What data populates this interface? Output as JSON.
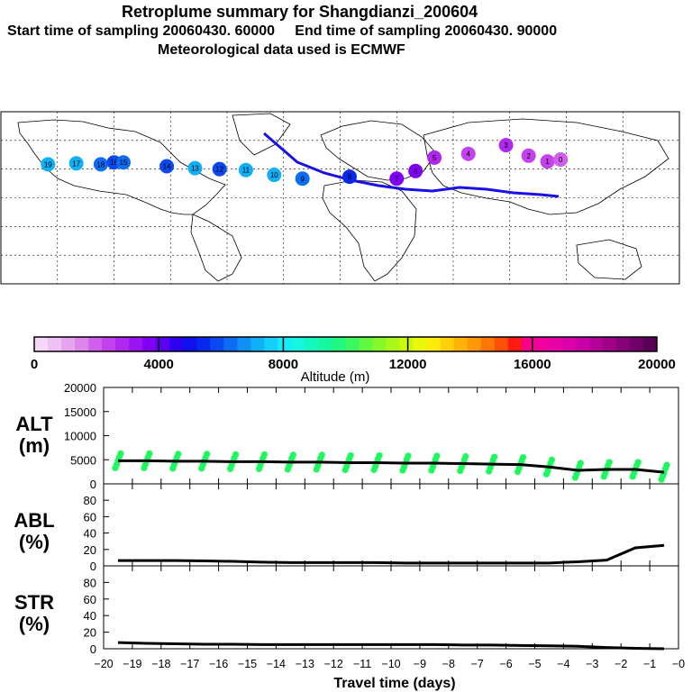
{
  "header": {
    "title": "Retroplume summary for Shangdianzi_200604",
    "start_label": "Start time of sampling 20060430. 60000",
    "end_label": "End time of sampling 20060430. 90000",
    "met_label": "Meteorological data used is ECMWF"
  },
  "colorbar": {
    "title": "Altitude (m)",
    "tick_labels": [
      "0",
      "4000",
      "8000",
      "12000",
      "16000",
      "20000"
    ],
    "colors": [
      "#f5d8f7",
      "#eec0f3",
      "#e6a4ef",
      "#dc86ec",
      "#d060eb",
      "#c442ee",
      "#b028f0",
      "#9a14f2",
      "#8000f5",
      "#5a00f5",
      "#2d00f2",
      "#1010ee",
      "#0828f0",
      "#0a48f2",
      "#0c6cf4",
      "#0e90f6",
      "#10b0f8",
      "#12d0f9",
      "#14ecf8",
      "#14f6e0",
      "#14f8c0",
      "#16f8a0",
      "#20f880",
      "#3cf860",
      "#60f840",
      "#86f828",
      "#aaf818",
      "#ccf810",
      "#eaf80c",
      "#fbec0a",
      "#fdd008",
      "#feb406",
      "#ff9806",
      "#ff7806",
      "#ff5008",
      "#ff1a14",
      "#f8008a",
      "#f0009e",
      "#e800a8",
      "#dc00aa",
      "#c800a8",
      "#b40098",
      "#9e0088",
      "#880078",
      "#700068",
      "#580056"
    ]
  },
  "map": {
    "plume_points": [
      {
        "label": "19",
        "lon": -155,
        "lat": 35,
        "alt": 7000
      },
      {
        "label": "17",
        "lon": -140,
        "lat": 36,
        "alt": 7000
      },
      {
        "label": "18",
        "lon": -127,
        "lat": 35,
        "alt": 6500
      },
      {
        "label": "16",
        "lon": -120,
        "lat": 37,
        "alt": 6000
      },
      {
        "label": "15",
        "lon": -115,
        "lat": 37,
        "alt": 6500
      },
      {
        "label": "14",
        "lon": -92,
        "lat": 33,
        "alt": 6000
      },
      {
        "label": "13",
        "lon": -77,
        "lat": 31,
        "alt": 7000
      },
      {
        "label": "12",
        "lon": -64,
        "lat": 30,
        "alt": 6000
      },
      {
        "label": "11",
        "lon": -50,
        "lat": 29,
        "alt": 7000
      },
      {
        "label": "10",
        "lon": -35,
        "lat": 24,
        "alt": 7000
      },
      {
        "label": "9",
        "lon": -20,
        "lat": 20,
        "alt": 6500
      },
      {
        "label": "8",
        "lon": 5,
        "lat": 22,
        "alt": 5500
      },
      {
        "label": "7",
        "lon": 30,
        "lat": 20,
        "alt": 3500
      },
      {
        "label": "6",
        "lon": 40,
        "lat": 28,
        "alt": 3500
      },
      {
        "label": "5",
        "lon": 50,
        "lat": 42,
        "alt": 3000
      },
      {
        "label": "4",
        "lon": 68,
        "lat": 46,
        "alt": 2500
      },
      {
        "label": "3",
        "lon": 88,
        "lat": 55,
        "alt": 3000
      },
      {
        "label": "2",
        "lon": 100,
        "lat": 44,
        "alt": 2500
      },
      {
        "label": "1",
        "lon": 110,
        "lat": 38,
        "alt": 2500
      },
      {
        "label": "0",
        "lon": 117,
        "lat": 40,
        "alt": 1800
      }
    ]
  },
  "chart_data": [
    {
      "type": "line",
      "panel": "ALT",
      "ylabel_lines": [
        "ALT",
        "(m)"
      ],
      "ylim": [
        0,
        20000
      ],
      "yticks": [
        "0",
        "5000",
        "10000",
        "15000",
        "20000"
      ],
      "x": [
        -19.5,
        -18.5,
        -17.5,
        -16.5,
        -15.5,
        -14.5,
        -13.5,
        -12.5,
        -11.5,
        -10.5,
        -9.5,
        -8.5,
        -7.5,
        -6.5,
        -5.5,
        -4.5,
        -3.5,
        -2.5,
        -1.5,
        -0.5
      ],
      "median": [
        4800,
        4800,
        4700,
        4700,
        4600,
        4600,
        4500,
        4500,
        4400,
        4400,
        4300,
        4300,
        4200,
        4100,
        4000,
        3500,
        2800,
        3000,
        3000,
        2400
      ],
      "spread_color": "#20f860"
    },
    {
      "type": "line",
      "panel": "ABL",
      "ylabel_lines": [
        "ABL",
        "(%)"
      ],
      "ylim": [
        0,
        100
      ],
      "yticks": [
        "0",
        "20",
        "40",
        "60",
        "80"
      ],
      "x": [
        -19.5,
        -18.5,
        -17.5,
        -16.5,
        -15.5,
        -14.5,
        -13.5,
        -12.5,
        -11.5,
        -10.5,
        -9.5,
        -8.5,
        -7.5,
        -6.5,
        -5.5,
        -4.5,
        -3.5,
        -2.5,
        -1.5,
        -0.5
      ],
      "values": [
        6.5,
        6.5,
        6.5,
        6.0,
        5.5,
        4.5,
        4.0,
        4.0,
        4.0,
        4.0,
        3.5,
        3.5,
        3.5,
        3.5,
        3.5,
        3.5,
        5.0,
        7.0,
        22.0,
        25.0
      ]
    },
    {
      "type": "line",
      "panel": "STR",
      "ylabel_lines": [
        "STR",
        "(%)"
      ],
      "ylim": [
        0,
        100
      ],
      "yticks": [
        "0",
        "20",
        "40",
        "60",
        "80"
      ],
      "xlabel": "Travel time (days)",
      "xlim": [
        -20,
        0
      ],
      "xticks": [
        "−20",
        "−19",
        "−18",
        "−17",
        "−16",
        "−15",
        "−14",
        "−13",
        "−12",
        "−11",
        "−10",
        "−9",
        "−8",
        "−7",
        "−6",
        "−5",
        "−4",
        "−3",
        "−2",
        "−1",
        "−0"
      ],
      "x": [
        -19.5,
        -18.5,
        -17.5,
        -16.5,
        -15.5,
        -14.5,
        -13.5,
        -12.5,
        -11.5,
        -10.5,
        -9.5,
        -8.5,
        -7.5,
        -6.5,
        -5.5,
        -4.5,
        -3.5,
        -2.5,
        -1.5,
        -0.5
      ],
      "values": [
        7.5,
        6.5,
        6.0,
        5.5,
        5.5,
        5.0,
        5.0,
        5.0,
        5.0,
        5.0,
        5.0,
        5.0,
        4.5,
        4.5,
        4.0,
        3.5,
        3.0,
        1.5,
        0.5,
        0.0
      ]
    }
  ]
}
